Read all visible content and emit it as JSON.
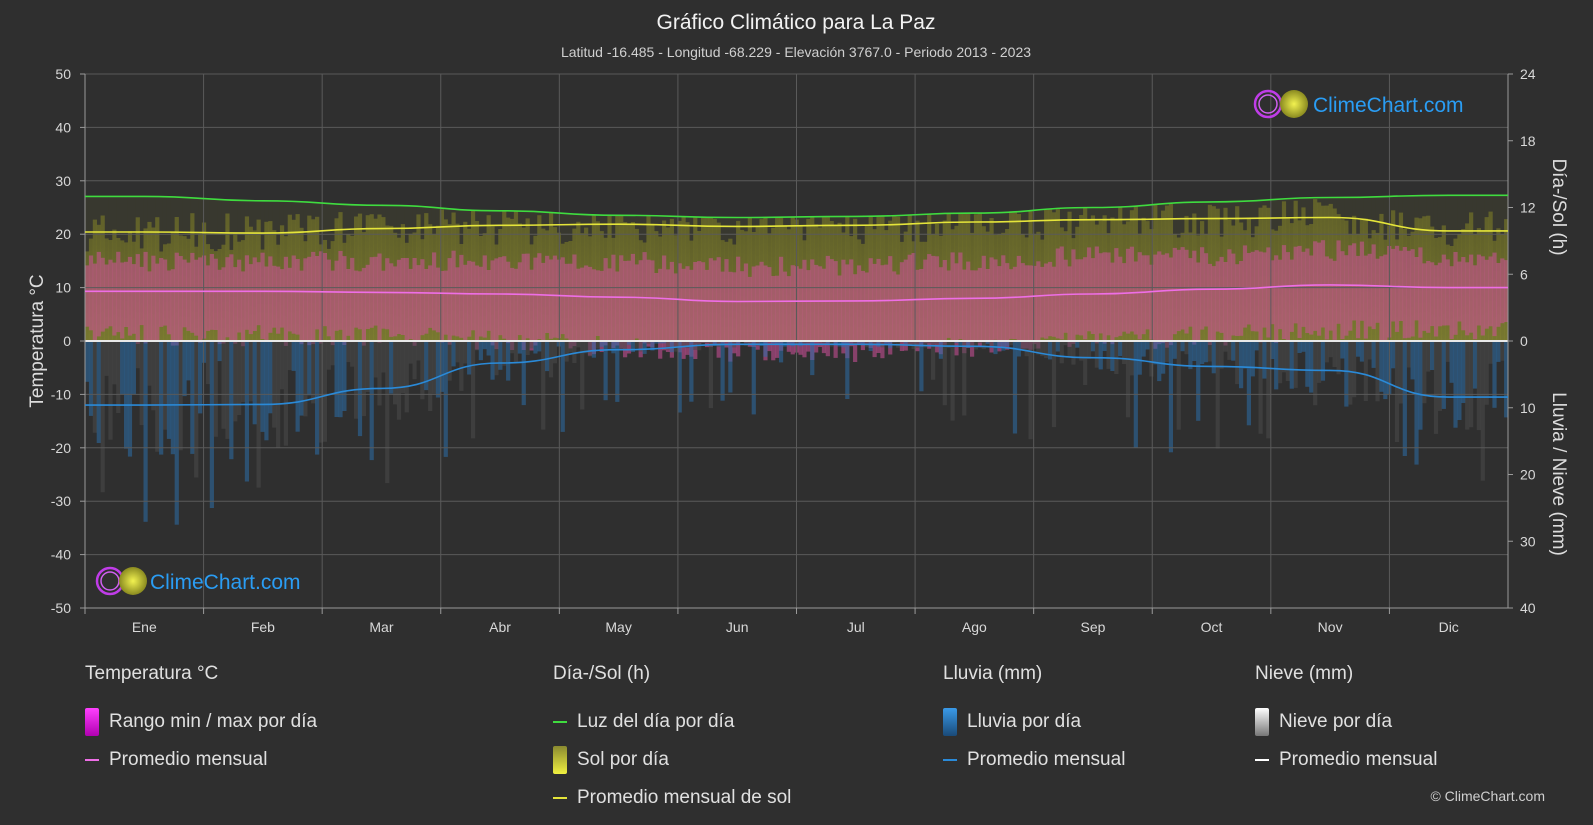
{
  "title": "Gráfico Climático para La Paz",
  "subtitle": "Latitud -16.485 - Longitud -68.229 - Elevación 3767.0 - Periodo 2013 - 2023",
  "logo_text": "ClimeChart.com",
  "copyright": "© ClimeChart.com",
  "axes": {
    "left_title": "Temperatura °C",
    "right_top_title": "Día-/Sol (h)",
    "right_bottom_title": "Lluvia / Nieve (mm)"
  },
  "colors": {
    "background": "#2f2f2f",
    "daylight": "#3fdc3f",
    "sunshine_line": "#e5e53a",
    "temp_avg": "#ee6ee6",
    "rain": "#2a8ad8",
    "snow_avg": "#ffffff"
  },
  "chart_data": {
    "type": "line",
    "categories": [
      "Ene",
      "Feb",
      "Mar",
      "Abr",
      "May",
      "Jun",
      "Jul",
      "Ago",
      "Sep",
      "Oct",
      "Nov",
      "Dic"
    ],
    "temp_axis": {
      "ticks": [
        50,
        40,
        30,
        20,
        10,
        0,
        -10,
        -20,
        -30,
        -40,
        -50
      ],
      "range": [
        -50,
        50
      ]
    },
    "sun_axis": {
      "ticks": [
        24,
        18,
        12,
        6,
        0
      ],
      "range": [
        0,
        24
      ]
    },
    "precip_axis": {
      "ticks": [
        0,
        10,
        20,
        30,
        40
      ],
      "range": [
        0,
        40
      ]
    },
    "series": [
      {
        "name": "Luz del día por día",
        "unit": "h",
        "values": [
          13.0,
          12.6,
          12.2,
          11.7,
          11.3,
          11.1,
          11.2,
          11.5,
          12.0,
          12.5,
          12.9,
          13.1
        ]
      },
      {
        "name": "Promedio mensual de sol",
        "unit": "h",
        "values": [
          9.8,
          9.7,
          10.1,
          10.4,
          10.5,
          10.3,
          10.4,
          10.7,
          10.9,
          11.0,
          11.1,
          9.9
        ]
      },
      {
        "name": "Promedio mensual",
        "unit": "°C",
        "values": [
          9.3,
          9.3,
          9.1,
          8.8,
          8.2,
          7.4,
          7.5,
          8.0,
          8.8,
          9.7,
          10.5,
          10.0
        ]
      },
      {
        "name": "Promedio mensual lluvia",
        "unit": "mm",
        "values": [
          9.6,
          9.5,
          7.1,
          3.3,
          1.3,
          0.5,
          0.5,
          0.8,
          2.5,
          3.8,
          4.4,
          8.4
        ]
      },
      {
        "name": "Promedio mensual nieve",
        "unit": "mm",
        "values": [
          0,
          0,
          0,
          0,
          0,
          0,
          0,
          0,
          0,
          0,
          0,
          0
        ]
      }
    ],
    "temp_range_band": {
      "name": "Rango min / max por día",
      "min": [
        1,
        1,
        1,
        0,
        -1,
        -2,
        -2,
        -1,
        0,
        1,
        2,
        2
      ],
      "max": [
        15,
        15,
        15,
        15,
        15,
        14,
        14,
        15,
        16,
        16,
        17,
        16
      ]
    }
  },
  "legend": {
    "groups": [
      {
        "header": "Temperatura °C",
        "items": [
          {
            "label": "Rango min / max por día",
            "kind": "box"
          },
          {
            "label": "Promedio mensual",
            "kind": "line"
          }
        ]
      },
      {
        "header": "Día-/Sol (h)",
        "items": [
          {
            "label": "Luz del día por día",
            "kind": "line"
          },
          {
            "label": "Sol por día",
            "kind": "box"
          },
          {
            "label": "Promedio mensual de sol",
            "kind": "line"
          }
        ]
      },
      {
        "header": "Lluvia (mm)",
        "items": [
          {
            "label": "Lluvia por día",
            "kind": "box"
          },
          {
            "label": "Promedio mensual",
            "kind": "line"
          }
        ]
      },
      {
        "header": "Nieve (mm)",
        "items": [
          {
            "label": "Nieve por día",
            "kind": "box"
          },
          {
            "label": "Promedio mensual",
            "kind": "line"
          }
        ]
      }
    ]
  }
}
